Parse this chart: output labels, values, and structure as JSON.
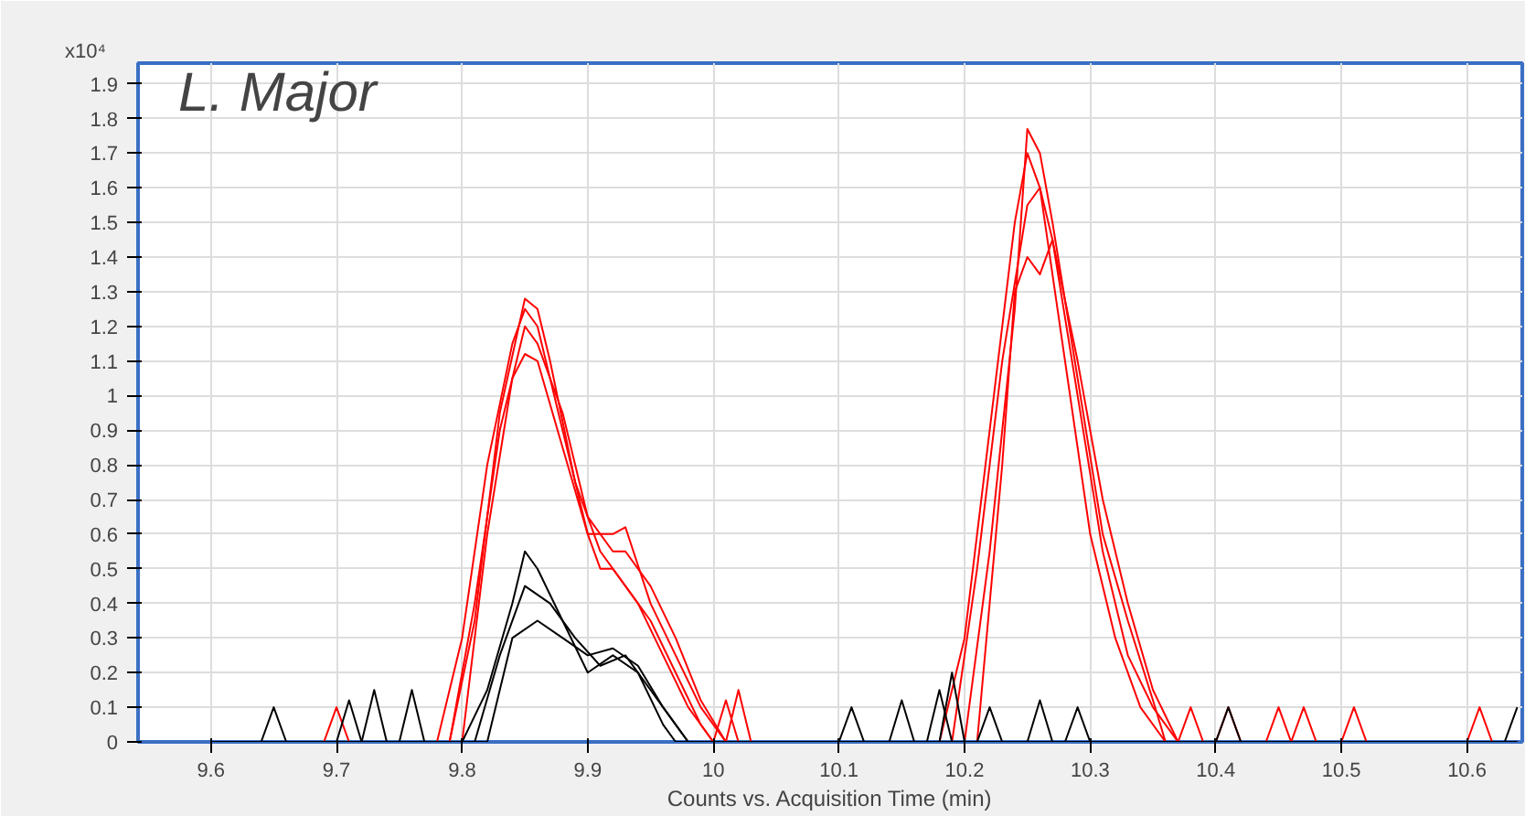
{
  "chart_data": {
    "type": "line",
    "title": "L. Major",
    "xlabel": "Counts vs. Acquisition Time (min)",
    "ylabel": "x10⁴",
    "xlim": [
      9.542,
      10.644
    ],
    "ylim": [
      0,
      1.96
    ],
    "xticks": [
      9.6,
      9.7,
      9.8,
      9.9,
      10,
      10.1,
      10.2,
      10.3,
      10.4,
      10.5,
      10.6
    ],
    "yticks": [
      0,
      0.1,
      0.2,
      0.3,
      0.4,
      0.5,
      0.6,
      0.7,
      0.8,
      0.9,
      1,
      1.1,
      1.2,
      1.3,
      1.4,
      1.5,
      1.6,
      1.7,
      1.8,
      1.9
    ],
    "grid": true,
    "marker": "none",
    "line_style": "solid",
    "series": [
      {
        "color": "#ff0000",
        "x": [
          9.6,
          9.78,
          9.8,
          9.82,
          9.84,
          9.85,
          9.86,
          9.88,
          9.9,
          9.91,
          9.92,
          9.94,
          9.96,
          9.98,
          10.0,
          10.01,
          10.02,
          10.18,
          10.2,
          10.22,
          10.24,
          10.25,
          10.26,
          10.28,
          10.3,
          10.32,
          10.34,
          10.36,
          10.4,
          10.41,
          10.42,
          10.5,
          10.51,
          10.52,
          10.64
        ],
        "values": [
          0,
          0,
          0.3,
          0.8,
          1.15,
          1.25,
          1.2,
          0.9,
          0.6,
          0.5,
          0.5,
          0.4,
          0.25,
          0.1,
          0,
          0.12,
          0,
          0,
          0.3,
          0.9,
          1.5,
          1.7,
          1.6,
          1.1,
          0.6,
          0.3,
          0.1,
          0,
          0,
          0.1,
          0,
          0,
          0.1,
          0,
          0
        ]
      },
      {
        "color": "#ff0000",
        "x": [
          9.6,
          9.69,
          9.7,
          9.71,
          9.79,
          9.81,
          9.83,
          9.85,
          9.86,
          9.88,
          9.9,
          9.92,
          9.93,
          9.95,
          9.97,
          9.99,
          10.01,
          10.02,
          10.03,
          10.19,
          10.21,
          10.23,
          10.25,
          10.26,
          10.27,
          10.29,
          10.31,
          10.33,
          10.35,
          10.37,
          10.38,
          10.39,
          10.64
        ],
        "values": [
          0,
          0,
          0.1,
          0,
          0,
          0.4,
          0.9,
          1.2,
          1.15,
          0.95,
          0.65,
          0.55,
          0.55,
          0.45,
          0.3,
          0.12,
          0,
          0.15,
          0,
          0,
          0.5,
          1.1,
          1.55,
          1.6,
          1.45,
          1.0,
          0.55,
          0.25,
          0.1,
          0,
          0.1,
          0,
          0
        ]
      },
      {
        "color": "#ff0000",
        "x": [
          9.6,
          9.79,
          9.81,
          9.83,
          9.85,
          9.86,
          9.87,
          9.89,
          9.91,
          9.93,
          9.95,
          9.97,
          9.99,
          10.0,
          10.2,
          10.22,
          10.24,
          10.25,
          10.26,
          10.27,
          10.29,
          10.31,
          10.33,
          10.35,
          10.36,
          10.46,
          10.47,
          10.48,
          10.6,
          10.61,
          10.62,
          10.64
        ],
        "values": [
          0,
          0,
          0.35,
          0.95,
          1.28,
          1.25,
          1.1,
          0.75,
          0.55,
          0.45,
          0.35,
          0.2,
          0.05,
          0,
          0,
          0.55,
          1.25,
          1.77,
          1.7,
          1.5,
          1.05,
          0.6,
          0.35,
          0.12,
          0,
          0,
          0.1,
          0,
          0,
          0.1,
          0,
          0
        ]
      },
      {
        "color": "#ff0000",
        "x": [
          9.6,
          9.8,
          9.82,
          9.84,
          9.85,
          9.86,
          9.88,
          9.9,
          9.92,
          9.93,
          9.95,
          9.97,
          9.99,
          10.01,
          10.21,
          10.23,
          10.24,
          10.25,
          10.26,
          10.27,
          10.29,
          10.31,
          10.33,
          10.35,
          10.37,
          10.44,
          10.45,
          10.46,
          10.64
        ],
        "values": [
          0,
          0,
          0.6,
          1.05,
          1.12,
          1.1,
          0.85,
          0.6,
          0.6,
          0.62,
          0.4,
          0.25,
          0.1,
          0,
          0,
          0.8,
          1.3,
          1.4,
          1.35,
          1.45,
          1.1,
          0.7,
          0.4,
          0.15,
          0,
          0,
          0.1,
          0,
          0
        ]
      },
      {
        "color": "#000000",
        "x": [
          9.6,
          9.64,
          9.65,
          9.66,
          9.72,
          9.73,
          9.74,
          9.8,
          9.82,
          9.84,
          9.85,
          9.86,
          9.88,
          9.9,
          9.92,
          9.94,
          9.96,
          9.97,
          10.1,
          10.11,
          10.12,
          10.18,
          10.19,
          10.2,
          10.28,
          10.29,
          10.3,
          10.64
        ],
        "values": [
          0,
          0,
          0.1,
          0,
          0,
          0.15,
          0,
          0,
          0.15,
          0.4,
          0.55,
          0.5,
          0.35,
          0.2,
          0.25,
          0.2,
          0.05,
          0,
          0,
          0.1,
          0,
          0,
          0.2,
          0,
          0,
          0.1,
          0,
          0
        ]
      },
      {
        "color": "#000000",
        "x": [
          9.6,
          9.7,
          9.71,
          9.72,
          9.81,
          9.83,
          9.85,
          9.87,
          9.89,
          9.91,
          9.93,
          9.95,
          9.97,
          9.98,
          10.14,
          10.15,
          10.16,
          10.21,
          10.22,
          10.23,
          10.4,
          10.41,
          10.42,
          10.64
        ],
        "values": [
          0,
          0,
          0.12,
          0,
          0,
          0.25,
          0.45,
          0.4,
          0.3,
          0.22,
          0.25,
          0.15,
          0.05,
          0,
          0,
          0.12,
          0,
          0,
          0.1,
          0,
          0,
          0.1,
          0,
          0
        ]
      },
      {
        "color": "#000000",
        "x": [
          9.6,
          9.75,
          9.76,
          9.77,
          9.82,
          9.84,
          9.86,
          9.88,
          9.9,
          9.92,
          9.94,
          9.96,
          9.98,
          10.17,
          10.18,
          10.19,
          10.25,
          10.26,
          10.27,
          10.63,
          10.64
        ],
        "values": [
          0,
          0,
          0.15,
          0,
          0,
          0.3,
          0.35,
          0.3,
          0.25,
          0.27,
          0.22,
          0.1,
          0,
          0,
          0.15,
          0,
          0,
          0.12,
          0,
          0,
          0.1
        ]
      }
    ]
  }
}
